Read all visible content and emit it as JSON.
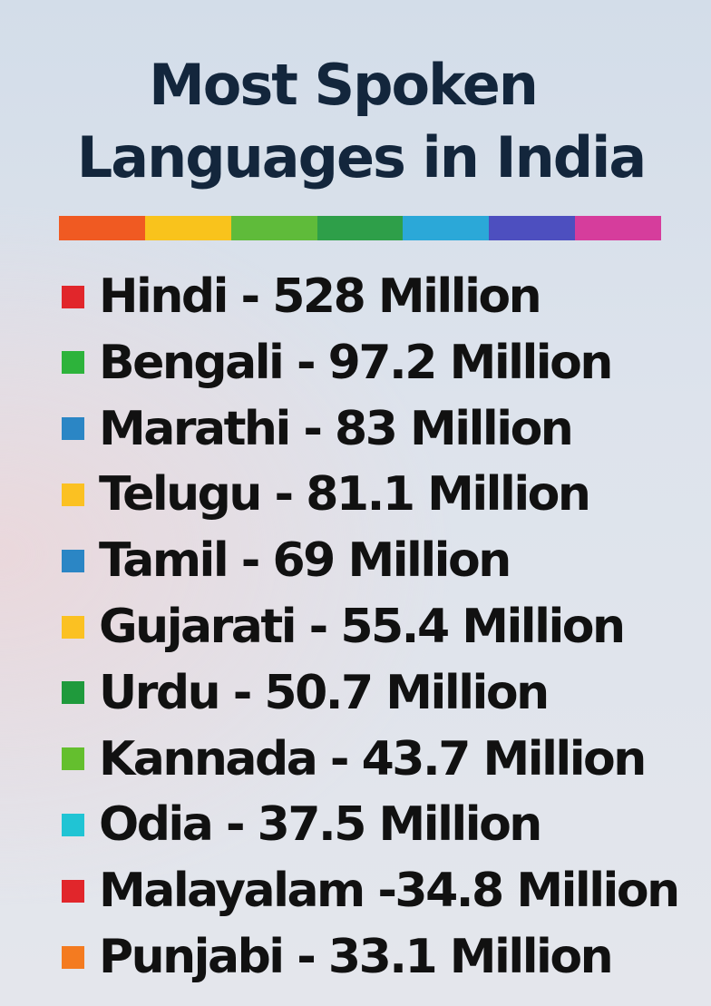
{
  "title": {
    "line1": "Most Spoken",
    "line2": "Languages in India"
  },
  "rainbow_colors": [
    "#f05a22",
    "#f9c31c",
    "#5fbb3a",
    "#2e9f49",
    "#2ba8d8",
    "#4d4fbf",
    "#d63d9c"
  ],
  "languages": [
    {
      "text": "Hindi - 528 Million",
      "color": "#e1262b"
    },
    {
      "text": "Bengali - 97.2 Million",
      "color": "#2db33b"
    },
    {
      "text": "Marathi - 83 Million",
      "color": "#2b86c5"
    },
    {
      "text": "Telugu - 81.1 Million",
      "color": "#fbc122"
    },
    {
      "text": "Tamil - 69 Million",
      "color": "#2b86c5"
    },
    {
      "text": "Gujarati - 55.4 Million",
      "color": "#fbc122"
    },
    {
      "text": "Urdu - 50.7 Million",
      "color": "#1f9a3c"
    },
    {
      "text": "Kannada - 43.7 Million",
      "color": "#64bf2e"
    },
    {
      "text": "Odia - 37.5 Million",
      "color": "#20c4d4"
    },
    {
      "text": "Malayalam -34.8 Million",
      "color": "#e1262b"
    },
    {
      "text": "Punjabi - 33.1 Million",
      "color": "#f47b20"
    }
  ]
}
